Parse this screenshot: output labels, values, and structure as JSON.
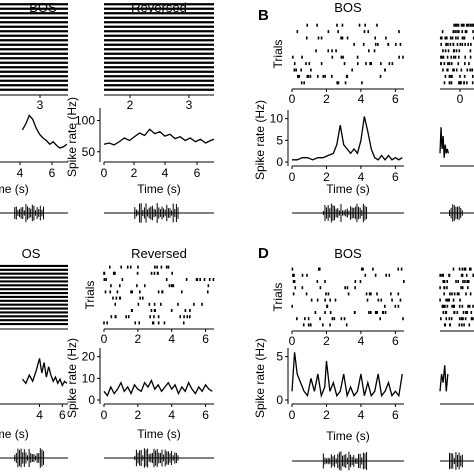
{
  "chart_data": [
    {
      "id": "A",
      "panel_letter": "",
      "columns": [
        {
          "title": "BOS",
          "raster": {
            "type": "raster",
            "ylabel": "",
            "xticks": [
              "3"
            ],
            "trials": 20,
            "dense": true
          },
          "rate": {
            "type": "line",
            "ylabel": "",
            "xlabel": "Time (s)",
            "xticks": [
              "4",
              "6"
            ],
            "xlim": [
              0,
              6.5
            ],
            "ylim": [
              40,
              120
            ],
            "yticks": [],
            "x": [
              2.5,
              2.8,
              3.1,
              3.4,
              3.7,
              4.0,
              4.3,
              4.6,
              4.9,
              5.2,
              5.5,
              5.8,
              6.1,
              6.4
            ],
            "y": [
              85,
              95,
              108,
              102,
              88,
              78,
              72,
              68,
              62,
              66,
              60,
              56,
              58,
              62
            ]
          }
        },
        {
          "title": "Reversed",
          "raster": {
            "type": "raster",
            "ylabel": "",
            "xticks": [
              "2",
              "3"
            ],
            "trials": 20,
            "dense": true
          },
          "rate": {
            "type": "line",
            "ylabel": "Spike rate (Hz)",
            "xlabel": "Time (s)",
            "xticks": [
              "0",
              "2",
              "4",
              "6"
            ],
            "yticks": [
              "50",
              "100"
            ],
            "xlim": [
              0,
              6.5
            ],
            "ylim": [
              40,
              120
            ],
            "x": [
              0,
              0.3,
              0.6,
              0.9,
              1.2,
              1.5,
              1.8,
              2.1,
              2.4,
              2.7,
              3.0,
              3.3,
              3.6,
              3.9,
              4.2,
              4.5,
              4.8,
              5.1,
              5.4,
              5.7,
              6.0,
              6.3,
              6.5
            ],
            "y": [
              62,
              64,
              61,
              66,
              72,
              68,
              74,
              80,
              76,
              86,
              79,
              82,
              75,
              78,
              71,
              74,
              68,
              72,
              66,
              70,
              64,
              68,
              70
            ]
          }
        }
      ]
    },
    {
      "id": "B",
      "panel_letter": "B",
      "columns": [
        {
          "title": "BOS",
          "raster": {
            "type": "raster",
            "ylabel": "Trials",
            "xticks": [
              "0",
              "2",
              "4",
              "6"
            ],
            "xlim": [
              0,
              6.5
            ],
            "trials": 10,
            "dense": false
          },
          "rate": {
            "type": "line",
            "ylabel": "Spike rate (Hz)",
            "xlabel": "Time (s)",
            "xticks": [
              "0",
              "2",
              "4",
              "6"
            ],
            "yticks": [
              "0",
              "5",
              "10"
            ],
            "xlim": [
              0,
              6.5
            ],
            "ylim": [
              0,
              12
            ],
            "x": [
              0,
              0.3,
              0.6,
              0.9,
              1.2,
              1.5,
              1.8,
              2.1,
              2.4,
              2.6,
              2.8,
              3.0,
              3.2,
              3.4,
              3.6,
              3.8,
              4.0,
              4.2,
              4.4,
              4.6,
              4.8,
              5.0,
              5.2,
              5.4,
              5.6,
              5.8,
              6.0,
              6.2,
              6.4
            ],
            "y": [
              0.5,
              0.5,
              1,
              1,
              0.5,
              1,
              1,
              1.5,
              2,
              4,
              8.5,
              4,
              3,
              2,
              3,
              2,
              5,
              10.5,
              7,
              3,
              1,
              0.5,
              1.5,
              0.5,
              1.5,
              0.5,
              1,
              0.5,
              1
            ]
          }
        },
        {
          "title": "",
          "raster": {
            "type": "raster",
            "ylabel": "",
            "xticks": [
              "0"
            ],
            "trials": 10,
            "dense": false
          },
          "rate": {
            "type": "line",
            "ylabel": "",
            "xlabel": "",
            "xticks": [],
            "yticks": [],
            "xlim": [
              0,
              6.5
            ],
            "ylim": [
              0,
              12
            ],
            "x": [
              0,
              0.2,
              0.4,
              0.6,
              0.8,
              1.0,
              1.2,
              1.4,
              1.6
            ],
            "y": [
              2,
              8,
              3,
              6,
              1,
              4,
              2,
              3,
              2
            ]
          }
        }
      ]
    },
    {
      "id": "C",
      "panel_letter": "",
      "columns": [
        {
          "title": "OS",
          "raster": {
            "type": "raster",
            "ylabel": "",
            "xticks": [],
            "trials": 16,
            "dense": true
          },
          "rate": {
            "type": "line",
            "ylabel": "",
            "xlabel": "Time (s)",
            "xticks": [
              "4",
              "6"
            ],
            "yticks": [],
            "xlim": [
              0,
              6.5
            ],
            "ylim": [
              0,
              25
            ],
            "x": [
              2.5,
              2.8,
              3.1,
              3.4,
              3.7,
              4.0,
              4.2,
              4.4,
              4.6,
              4.8,
              5.0,
              5.2,
              5.4,
              5.6,
              5.8,
              6.0,
              6.2,
              6.4
            ],
            "y": [
              10,
              8,
              12,
              9,
              14,
              20,
              13,
              18,
              11,
              16,
              12,
              9,
              11,
              8,
              10,
              7,
              9,
              8
            ]
          }
        },
        {
          "title": "Reversed",
          "raster": {
            "type": "raster",
            "ylabel": "Trials",
            "xticks": [
              "0",
              "2",
              "4",
              "6"
            ],
            "xlim": [
              0,
              6.5
            ],
            "trials": 10,
            "dense": false
          },
          "rate": {
            "type": "line",
            "ylabel": "Spike rate (Hz)",
            "xlabel": "Time (s)",
            "xticks": [
              "0",
              "2",
              "4",
              "6"
            ],
            "yticks": [
              "0",
              "10",
              "20"
            ],
            "xlim": [
              0,
              6.5
            ],
            "ylim": [
              0,
              24
            ],
            "x": [
              0,
              0.2,
              0.4,
              0.6,
              0.8,
              1.0,
              1.2,
              1.4,
              1.6,
              1.8,
              2.0,
              2.2,
              2.4,
              2.6,
              2.8,
              3.0,
              3.2,
              3.4,
              3.6,
              3.8,
              4.0,
              4.2,
              4.4,
              4.6,
              4.8,
              5.0,
              5.2,
              5.4,
              5.6,
              5.8,
              6.0,
              6.2,
              6.4
            ],
            "y": [
              4,
              2,
              6,
              3,
              5,
              8,
              4,
              6,
              3,
              7,
              5,
              4,
              8,
              6,
              9,
              5,
              7,
              4,
              6,
              8,
              5,
              7,
              3,
              6,
              4,
              8,
              5,
              3,
              6,
              4,
              7,
              5,
              4
            ]
          }
        }
      ]
    },
    {
      "id": "D",
      "panel_letter": "D",
      "columns": [
        {
          "title": "BOS",
          "raster": {
            "type": "raster",
            "ylabel": "Trials",
            "xticks": [
              "0",
              "2",
              "4",
              "6"
            ],
            "xlim": [
              0,
              6.5
            ],
            "trials": 10,
            "dense": false
          },
          "rate": {
            "type": "line",
            "ylabel": "Spike rate (Hz)",
            "xlabel": "Time (s)",
            "xticks": [
              "0",
              "2",
              "4",
              "6"
            ],
            "yticks": [
              "0",
              "5"
            ],
            "xlim": [
              0,
              6.5
            ],
            "ylim": [
              0,
              6
            ],
            "x": [
              0,
              0.15,
              0.3,
              0.5,
              0.7,
              0.9,
              1.1,
              1.3,
              1.5,
              1.7,
              1.9,
              2.0,
              2.2,
              2.4,
              2.6,
              2.8,
              3.0,
              3.2,
              3.4,
              3.6,
              3.8,
              4.0,
              4.2,
              4.4,
              4.6,
              4.8,
              5.0,
              5.2,
              5.4,
              5.6,
              5.8,
              6.0,
              6.2,
              6.4
            ],
            "y": [
              1,
              5.5,
              3,
              2,
              1,
              0.5,
              2.5,
              1,
              3,
              0.5,
              1.5,
              4.5,
              1,
              2,
              0.5,
              1,
              3,
              0.5,
              1.5,
              0.5,
              1,
              3,
              0.5,
              2,
              0.5,
              1,
              3,
              0.5,
              1,
              2,
              0.5,
              1,
              0.5,
              3
            ]
          }
        },
        {
          "title": "",
          "raster": {
            "type": "raster",
            "ylabel": "",
            "xticks": [],
            "trials": 10,
            "dense": false
          },
          "rate": {
            "type": "line",
            "ylabel": "",
            "xlabel": "",
            "xticks": [],
            "yticks": [],
            "xlim": [
              0,
              6.5
            ],
            "ylim": [
              0,
              6
            ],
            "x": [
              0,
              0.3,
              0.6,
              0.9,
              1.2,
              1.5
            ],
            "y": [
              1,
              3,
              2,
              4,
              1,
              3
            ]
          }
        }
      ]
    }
  ]
}
